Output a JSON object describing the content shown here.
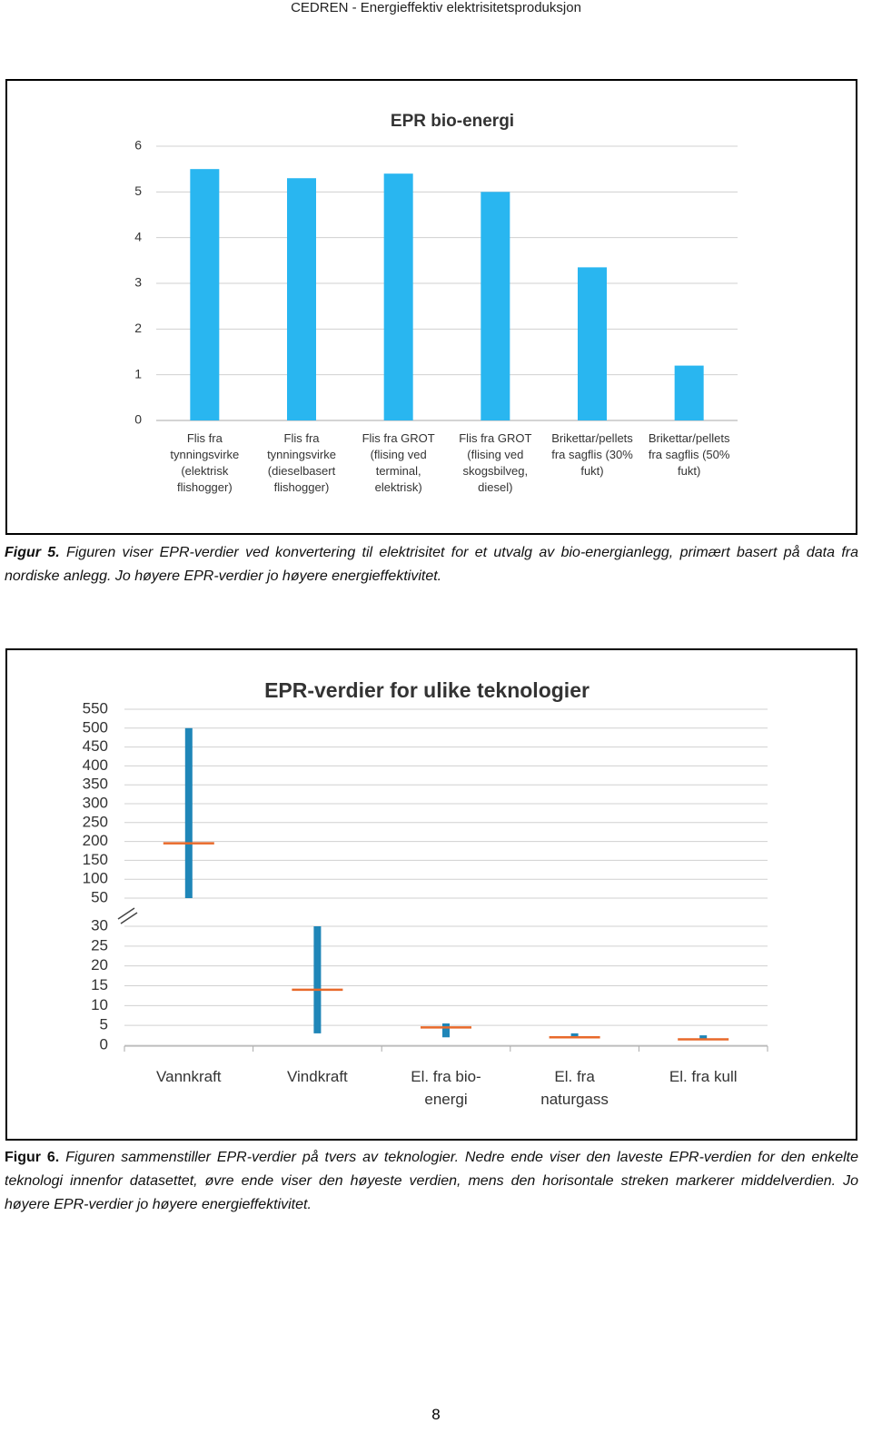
{
  "header": "CEDREN - Energieffektiv elektrisitetsproduksjon",
  "chart_data": [
    {
      "type": "bar",
      "title": "EPR bio-energi",
      "categories": [
        "Flis fra tynningsvirke (elektrisk flishogger)",
        "Flis fra tynningsvirke (dieselbasert flishogger)",
        "Flis fra GROT (flising ved terminal, elektrisk)",
        "Flis fra GROT (flising ved skogsbilveg, diesel)",
        "Brikettar/pellets fra sagflis (30% fukt)",
        "Brikettar/pellets fra sagflis (50% fukt)"
      ],
      "values": [
        5.5,
        5.3,
        5.4,
        5.0,
        3.35,
        1.2
      ],
      "color": "#29b6f0",
      "ylim": [
        0,
        6
      ],
      "yticks": [
        0,
        1,
        2,
        3,
        4,
        5,
        6
      ],
      "grid": true
    },
    {
      "type": "range",
      "title": "EPR-verdier for ulike teknologier",
      "categories": [
        "Vannkraft",
        "Vindkraft",
        "El. fra bio-energi",
        "El. fra naturgass",
        "El. fra kull"
      ],
      "low": [
        50,
        3,
        2,
        2,
        1.5
      ],
      "high": [
        500,
        30,
        5.5,
        3,
        2.5
      ],
      "mean": [
        195,
        14,
        4.5,
        2,
        1.5
      ],
      "color": "#1f86b8",
      "mean_color": "#e8692a",
      "ylim_lower": [
        0,
        30
      ],
      "yticks_lower": [
        0,
        5,
        10,
        15,
        20,
        25,
        30
      ],
      "ylim_upper": [
        50,
        550
      ],
      "yticks_upper": [
        50,
        100,
        150,
        200,
        250,
        300,
        350,
        400,
        450,
        500,
        550
      ],
      "grid": true
    }
  ],
  "captions": [
    {
      "label": "Figur 5.",
      "text": "Figuren viser EPR-verdier ved konvertering til elektrisitet for et utvalg av bio-energianlegg, primært basert på data fra nordiske anlegg. Jo høyere EPR-verdier jo høyere energieffektivitet."
    },
    {
      "label": "Figur 6.",
      "text": "Figuren sammenstiller EPR-verdier på tvers av teknologier. Nedre ende viser den laveste EPR-verdien for den enkelte teknologi innenfor datasettet, øvre ende viser den høyeste verdien, mens den horisontale streken markerer middelverdien. Jo høyere EPR-verdier jo høyere energieffektivitet."
    }
  ],
  "page_number": "8"
}
